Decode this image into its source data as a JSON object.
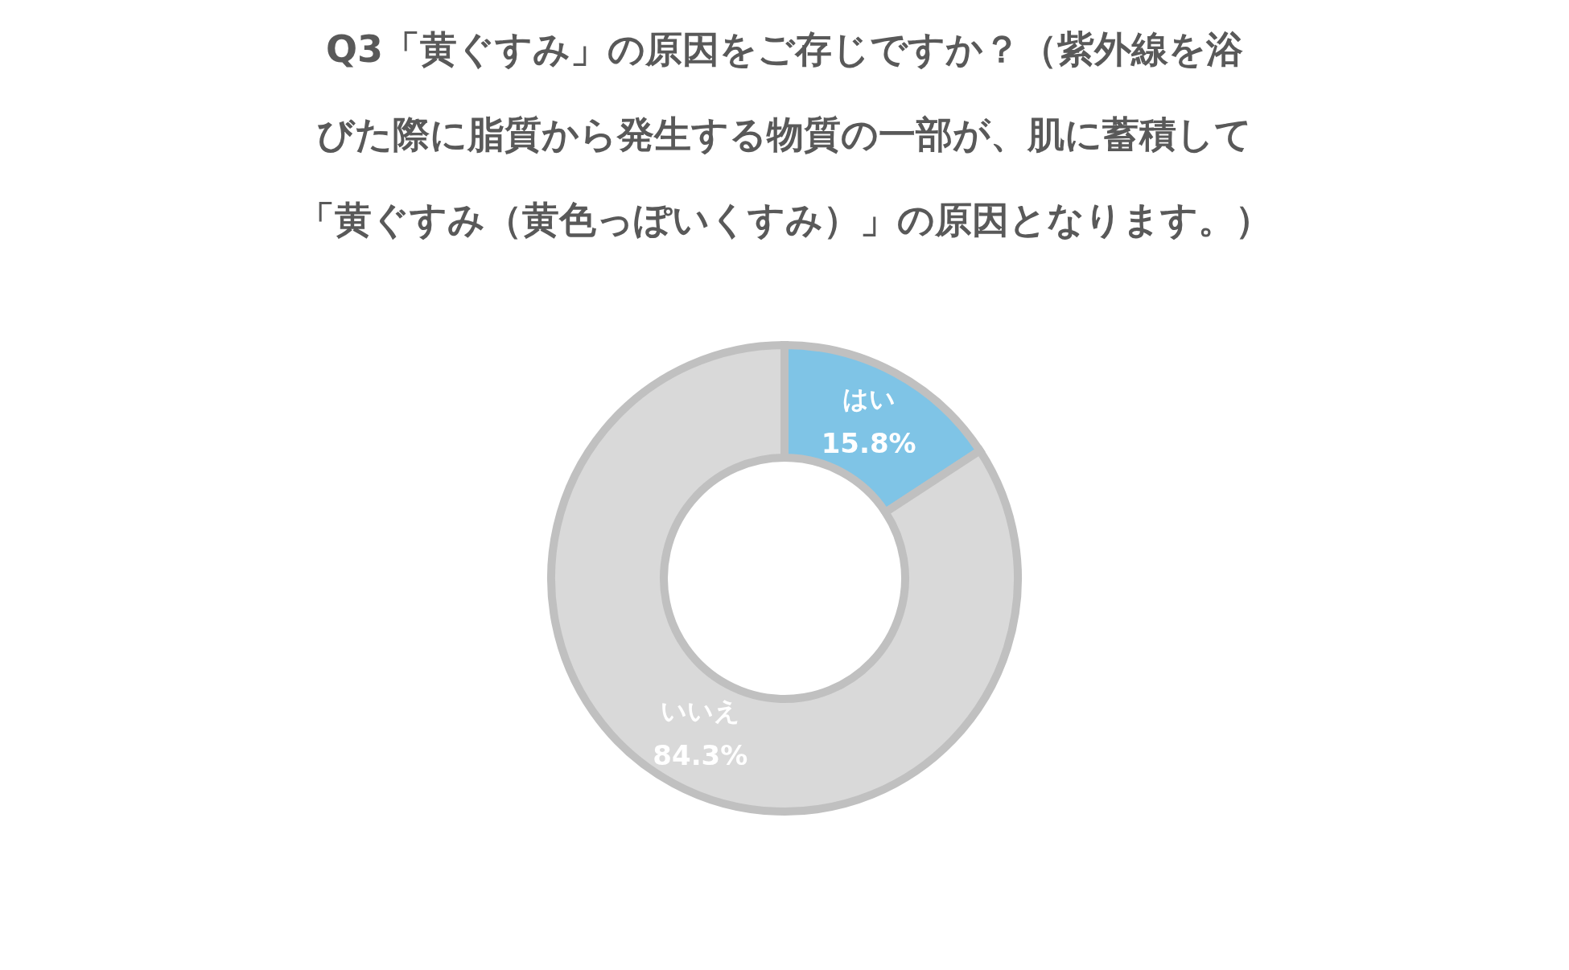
{
  "chart_data": {
    "type": "donut",
    "title": "Q3「黄ぐすみ」の原因をご存じですか？（紫外線を浴びた際に脂質から発生する物質の一部が、肌に蓄積して「黄ぐすみ（黄色っぽいくすみ）」の原因となります。）",
    "categories": [
      "はい",
      "いいえ"
    ],
    "values": [
      15.8,
      84.3
    ],
    "colors": [
      "#7fc4e6",
      "#d9d9d9"
    ],
    "value_labels": [
      "15.8%",
      "84.3%"
    ],
    "legend": false
  }
}
